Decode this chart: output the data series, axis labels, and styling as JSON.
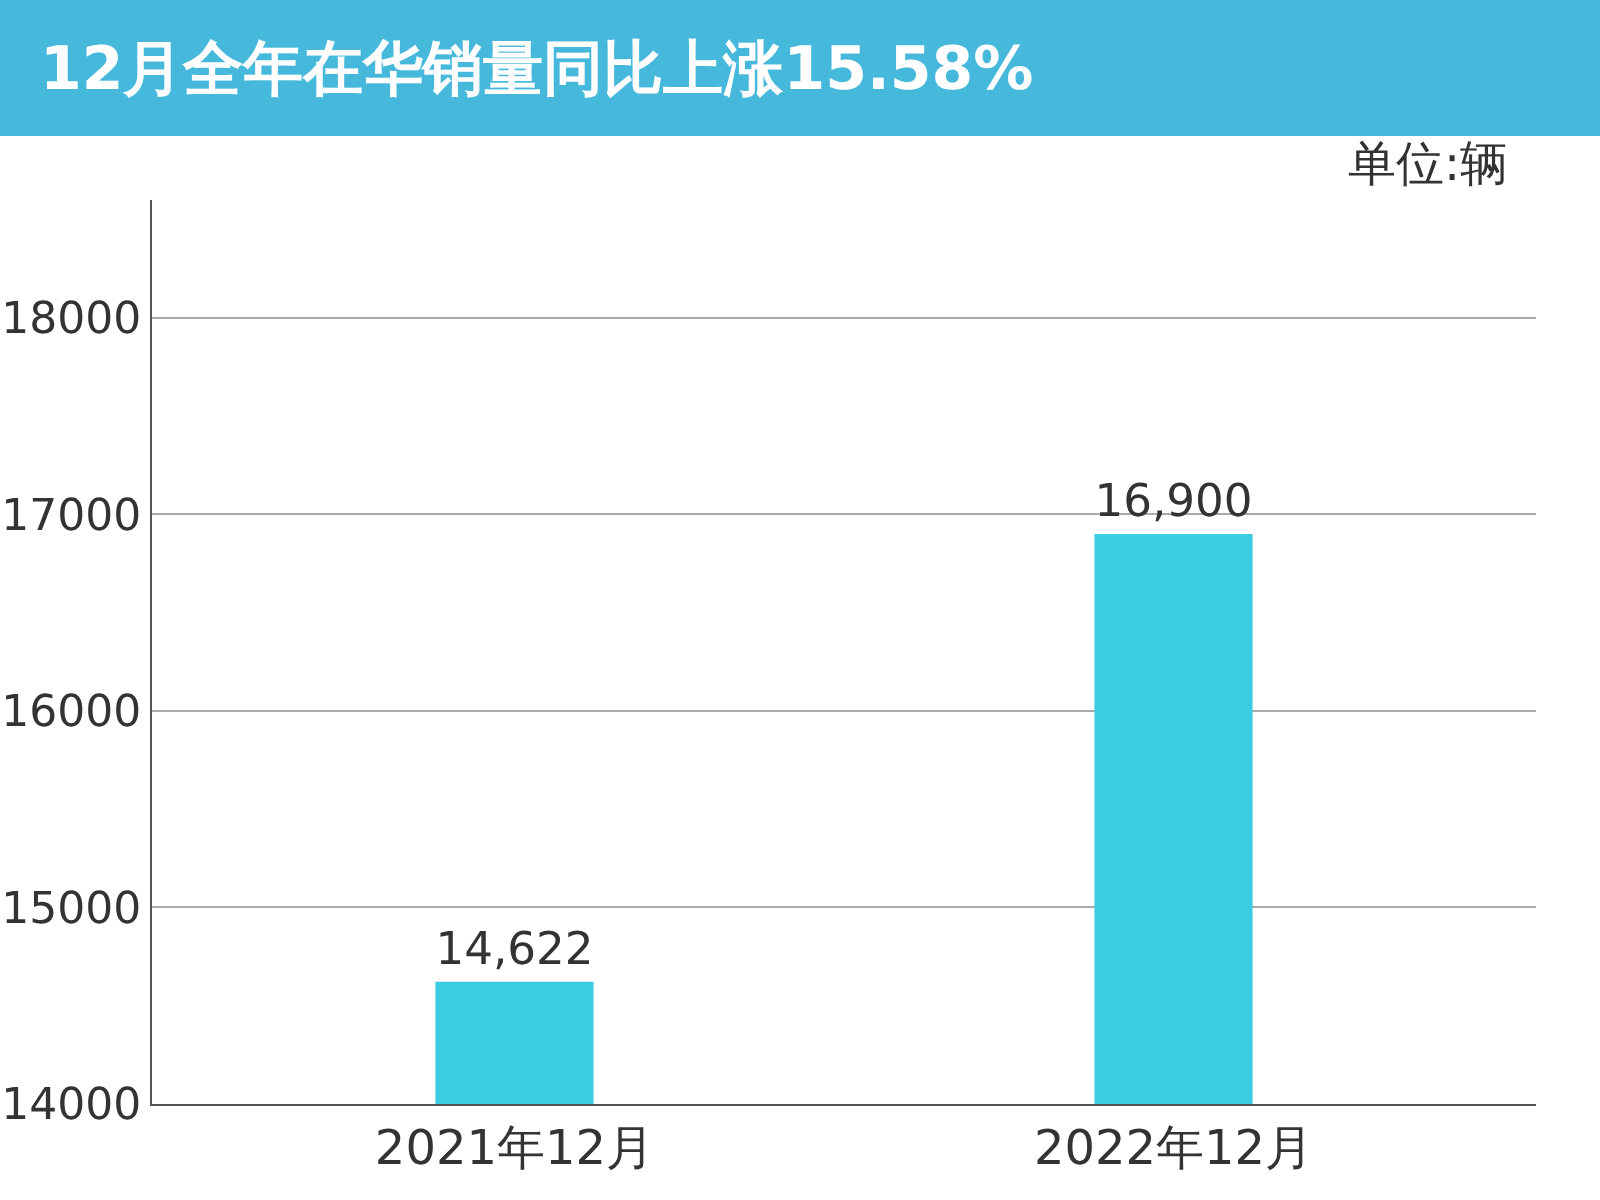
{
  "chart_data": {
    "type": "bar",
    "title": "12月全年在华销量同比上涨15.58%",
    "categories": [
      "2021年12月",
      "2022年12月"
    ],
    "values": [
      14622,
      16900
    ],
    "value_labels": [
      "14,622",
      "16,900"
    ],
    "color": "#3ccde3",
    "ylim": [
      14000,
      18600
    ],
    "yticks": [
      14000,
      15000,
      16000,
      17000,
      18000
    ],
    "grid": "y",
    "annotations": [
      "单位:辆"
    ]
  }
}
